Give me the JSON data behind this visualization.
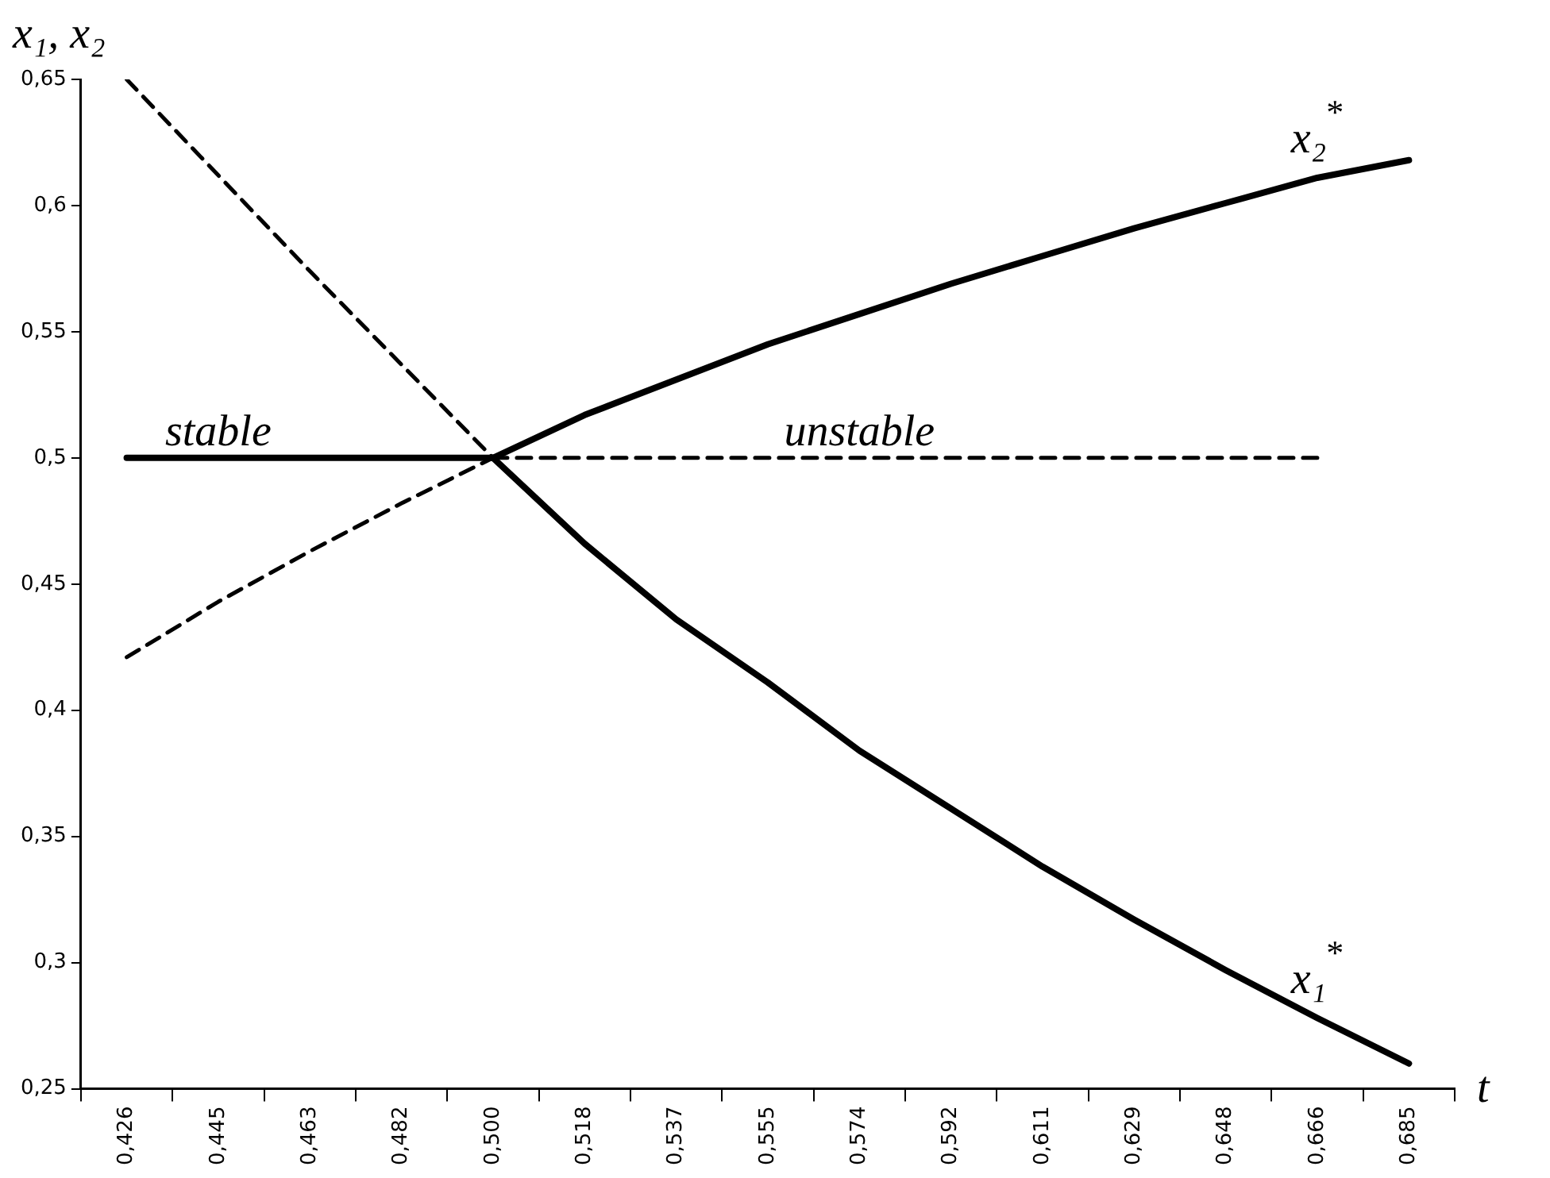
{
  "chart_data": {
    "type": "line",
    "xlabel": "t",
    "ylabel": "x₁, x₂",
    "categories": [
      "0,426",
      "0,445",
      "0,463",
      "0,482",
      "0,500",
      "0,518",
      "0,537",
      "0,555",
      "0,574",
      "0,592",
      "0,611",
      "0,629",
      "0,648",
      "0,666",
      "0,685"
    ],
    "series": [
      {
        "color": "#000000",
        "line_style": "dashed",
        "values": [
          0.65,
          0.612,
          0.574,
          0.537,
          0.5,
          null,
          null,
          null,
          null,
          null,
          null,
          null,
          null,
          null,
          null
        ]
      },
      {
        "color": "#000000",
        "line_style": "dashed",
        "values": [
          0.421,
          0.443,
          0.463,
          0.482,
          0.5,
          null,
          null,
          null,
          null,
          null,
          null,
          null,
          null,
          null,
          null
        ]
      },
      {
        "color": "#000000",
        "line_style": "dashed",
        "values": [
          null,
          null,
          null,
          null,
          0.5,
          0.5,
          0.5,
          0.5,
          0.5,
          0.5,
          0.5,
          0.5,
          0.5,
          0.5,
          null
        ]
      },
      {
        "name": "x₂$^{*}$",
        "color": "#000000",
        "line_style": "solid",
        "values": [
          0.5,
          0.5,
          0.5,
          0.5,
          0.5,
          0.517,
          0.531,
          0.545,
          0.557,
          0.569,
          0.58,
          0.591,
          0.601,
          0.611,
          0.618
        ]
      },
      {
        "name": "x₁$^{*}$",
        "color": "#000000",
        "line_style": "solid",
        "values": [
          null,
          null,
          null,
          null,
          0.5,
          0.466,
          0.436,
          0.411,
          0.384,
          0.361,
          0.338,
          0.317,
          0.297,
          0.278,
          0.26
        ]
      }
    ],
    "ylim": [
      0.25,
      0.65
    ],
    "yticks": [
      {
        "value": 0.25,
        "label": "0,25"
      },
      {
        "value": 0.3,
        "label": "0,3"
      },
      {
        "value": 0.35,
        "label": "0,35"
      },
      {
        "value": 0.4,
        "label": "0,4"
      },
      {
        "value": 0.45,
        "label": "0,45"
      },
      {
        "value": 0.5,
        "label": "0,5"
      },
      {
        "value": 0.55,
        "label": "0,55"
      },
      {
        "value": 0.6,
        "label": "0,6"
      },
      {
        "value": 0.65,
        "label": "0,65"
      }
    ],
    "annotations": [
      {
        "text": "stable",
        "x": "0,445",
        "y": 0.5
      },
      {
        "text": "unstable",
        "x": "0,574",
        "y": 0.5
      }
    ],
    "grid": false,
    "legend": false,
    "marker": "none"
  }
}
